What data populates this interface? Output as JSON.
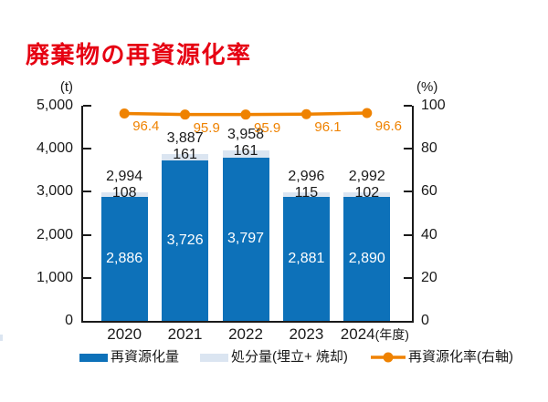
{
  "title": "廃棄物の再資源化率",
  "colors": {
    "bar_blue": "#0d71b9",
    "cap_blue": "#dbe5f1",
    "line_orange": "#ef8200",
    "title_red": "#e60012",
    "ink": "#1a1a1a"
  },
  "chart_data": {
    "type": "bar",
    "subtype": "stacked-bar-with-line",
    "categories": [
      "2020",
      "2021",
      "2022",
      "2023",
      "2024"
    ],
    "x_suffix": "(年度)",
    "grid": "off",
    "left_axis": {
      "unit": "(t)",
      "min": 0,
      "max": 5000,
      "tick_step": 1000,
      "tick_labels": [
        "0",
        "1,000",
        "2,000",
        "3,000",
        "4,000",
        "5,000"
      ]
    },
    "right_axis": {
      "unit": "(%)",
      "min": 0,
      "max": 100,
      "tick_step": 20,
      "tick_labels": [
        "0",
        "20",
        "40",
        "60",
        "80",
        "100"
      ]
    },
    "series": [
      {
        "name": "再資源化量",
        "type": "bar-stack",
        "axis": "left",
        "color": "#0d71b9",
        "values": [
          2886,
          3726,
          3797,
          2881,
          2890
        ],
        "value_labels": [
          "2,886",
          "3,726",
          "3,797",
          "2,881",
          "2,890"
        ]
      },
      {
        "name": "処分量(埋立+ 焼却)",
        "type": "bar-stack",
        "axis": "left",
        "color": "#dbe5f1",
        "values": [
          108,
          161,
          161,
          115,
          102
        ],
        "value_labels": [
          "108",
          "161",
          "161",
          "115",
          "102"
        ]
      },
      {
        "name": "再資源化率(右軸)",
        "type": "line",
        "axis": "right",
        "color": "#ef8200",
        "values": [
          96.4,
          95.9,
          95.9,
          96.1,
          96.6
        ],
        "value_labels": [
          "96.4",
          "95.9",
          "95.9",
          "96.1",
          "96.6"
        ]
      }
    ],
    "totals": [
      2994,
      3887,
      3958,
      2996,
      2992
    ],
    "total_labels": [
      "2,994",
      "3,887",
      "3,958",
      "2,996",
      "2,992"
    ],
    "legend_position": "bottom"
  }
}
